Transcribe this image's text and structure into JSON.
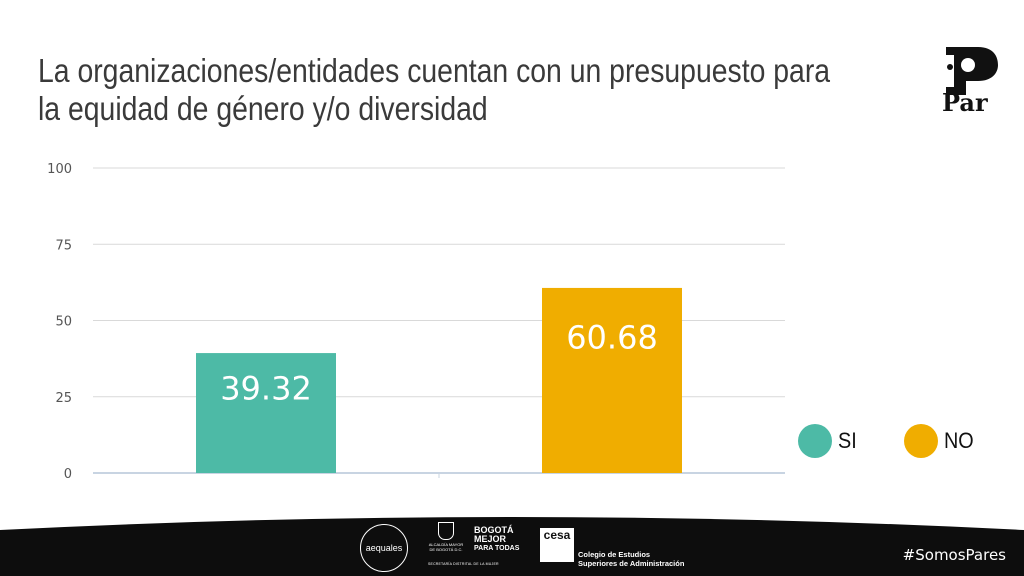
{
  "title_line1": "La organizaciones/entidades cuentan con un presupuesto para",
  "title_line2": "la equidad de género y/o diversidad",
  "brand": {
    "name": "Par"
  },
  "chart_data": {
    "type": "bar",
    "title": "La organizaciones/entidades cuentan con un presupuesto para la equidad de género y/o diversidad",
    "categories": [
      "SI",
      "NO"
    ],
    "values": [
      39.32,
      60.68
    ],
    "data_labels": [
      "39.32",
      "60.68"
    ],
    "colors": [
      "#4dbaa6",
      "#f0ad00"
    ],
    "ylim": [
      0,
      100
    ],
    "yticks": [
      0,
      25,
      50,
      75,
      100
    ],
    "grid": true,
    "legend_position": "right"
  },
  "legend": [
    {
      "label": "SI",
      "color": "#4dbaa6"
    },
    {
      "label": "NO",
      "color": "#f0ad00"
    }
  ],
  "footer": {
    "hashtag": "#SomosPares",
    "logos": {
      "aequales": "aequales",
      "alcaldia": "ALCALDÍA MAYOR DE BOGOTÁ D.C.",
      "bogota_line1": "BOGOTÁ",
      "bogota_line2": "MEJOR",
      "bogota_line3": "PARA TODAS",
      "secretaria": "SECRETARÍA DISTRITAL DE LA MUJER",
      "cesa_mark": "cesa",
      "cesa_line1": "Colegio de Estudios",
      "cesa_line2": "Superiores de Administración"
    }
  }
}
